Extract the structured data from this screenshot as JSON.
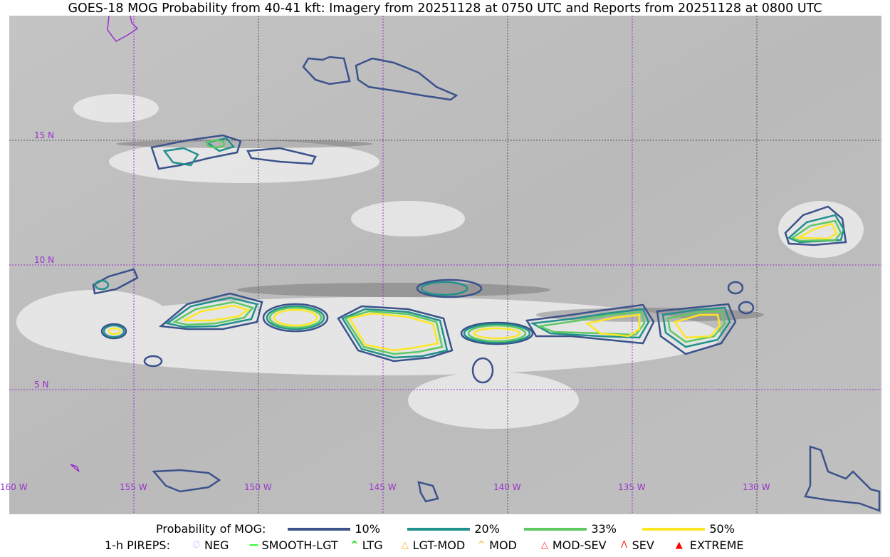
{
  "title": "GOES-18 MOG Probability from 40-41 kft: Imagery from 20251128 at 0750 UTC and Reports from 20251128 at 0800 UTC",
  "map": {
    "latitude_labels": [
      "15 N",
      "10 N",
      "5 N"
    ],
    "longitude_labels": [
      "160 W",
      "155 W",
      "150 W",
      "145 W",
      "140 W",
      "135 W",
      "130 W"
    ],
    "grid_color": "#9932cc"
  },
  "legend": {
    "probability_label": "Probability of MOG:",
    "levels": [
      {
        "label": "10%",
        "color": "#3b528b"
      },
      {
        "label": "20%",
        "color": "#21918c"
      },
      {
        "label": "33%",
        "color": "#5ec962"
      },
      {
        "label": "50%",
        "color": "#fde725"
      }
    ],
    "pireps_label": "1-h PIREPS:",
    "pireps": [
      {
        "label": "NEG",
        "icon": "neg-circle-icon",
        "color": "#c8c8ff"
      },
      {
        "label": "SMOOTH-LGT",
        "icon": "line-icon",
        "color": "#00ff00"
      },
      {
        "label": "LTG",
        "icon": "caret-icon",
        "color": "#00ff00"
      },
      {
        "label": "LGT-MOD",
        "icon": "caret-bar-icon",
        "color": "#ffb020"
      },
      {
        "label": "MOD",
        "icon": "caret-icon",
        "color": "#ffb020"
      },
      {
        "label": "MOD-SEV",
        "icon": "double-caret-bar-icon",
        "color": "#ff3030"
      },
      {
        "label": "SEV",
        "icon": "double-caret-icon",
        "color": "#ff3030"
      },
      {
        "label": "EXTREME",
        "icon": "filled-triangle-icon",
        "color": "#ff0000"
      }
    ]
  }
}
